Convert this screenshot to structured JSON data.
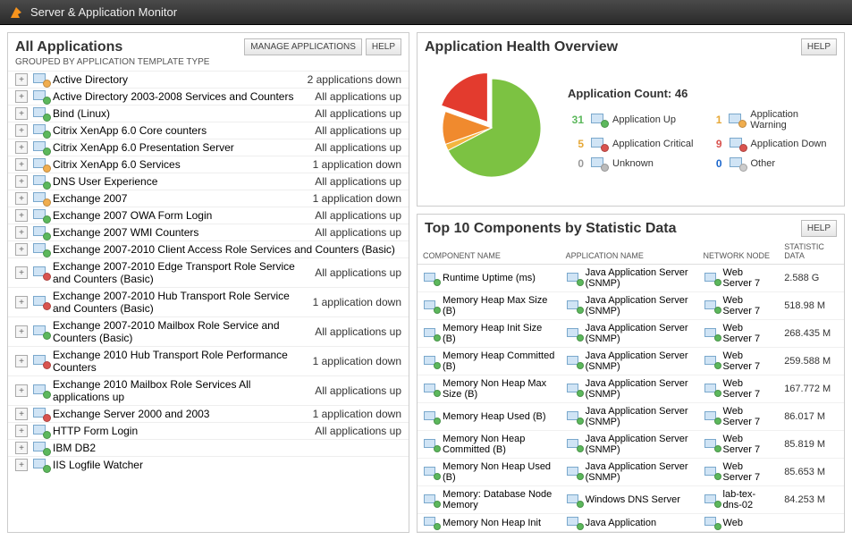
{
  "topbar": {
    "title": "Server & Application Monitor"
  },
  "leftPanel": {
    "title": "All Applications",
    "subtitle": "GROUPED BY APPLICATION TEMPLATE TYPE",
    "manageBtn": "MANAGE APPLICATIONS",
    "helpBtn": "HELP",
    "apps": [
      {
        "name": "Active Directory",
        "status": "2 applications down",
        "state": "warn"
      },
      {
        "name": "Active Directory 2003-2008 Services and Counters",
        "status": "All applications up",
        "state": "up"
      },
      {
        "name": "Bind (Linux)",
        "status": "All applications up",
        "state": "up"
      },
      {
        "name": "Citrix XenApp 6.0 Core counters",
        "status": "All applications up",
        "state": "up"
      },
      {
        "name": "Citrix XenApp 6.0 Presentation Server",
        "status": "All applications up",
        "state": "up"
      },
      {
        "name": "Citrix XenApp 6.0 Services",
        "status": "1 application down",
        "state": "warn"
      },
      {
        "name": "DNS User Experience",
        "status": "All applications up",
        "state": "up"
      },
      {
        "name": "Exchange 2007",
        "status": "1 application down",
        "state": "warn"
      },
      {
        "name": "Exchange 2007 OWA Form Login",
        "status": "All applications up",
        "state": "up"
      },
      {
        "name": "Exchange 2007 WMI Counters",
        "status": "All applications up",
        "state": "up"
      },
      {
        "name": "Exchange 2007-2010 Client Access Role Services and Counters (Basic)",
        "status": "",
        "state": "up"
      },
      {
        "name": "Exchange 2007-2010 Edge Transport Role Service and Counters (Basic)",
        "status": "All applications up",
        "state": "down"
      },
      {
        "name": "Exchange 2007-2010 Hub Transport Role Service and Counters (Basic)",
        "status": "1 application down",
        "state": "down"
      },
      {
        "name": "Exchange 2007-2010 Mailbox Role Service and Counters (Basic)",
        "status": "All applications up",
        "state": "up"
      },
      {
        "name": "Exchange 2010 Hub Transport Role Performance Counters",
        "status": "1 application down",
        "state": "down"
      },
      {
        "name": "Exchange 2010 Mailbox Role Services     All applications up",
        "status": "All applications up",
        "state": "up"
      },
      {
        "name": "Exchange Server 2000 and 2003",
        "status": "1 application down",
        "state": "down"
      },
      {
        "name": "HTTP Form Login",
        "status": "All applications up",
        "state": "up"
      },
      {
        "name": "IBM DB2",
        "status": "",
        "state": "up"
      },
      {
        "name": "IIS Logfile Watcher",
        "status": "",
        "state": "up"
      }
    ]
  },
  "healthPanel": {
    "title": "Application Health Overview",
    "helpBtn": "HELP",
    "countLabel": "Application Count: 46",
    "pie": {
      "slices": [
        {
          "label": "up",
          "value": 31,
          "color": "#7cc242",
          "pulled": false
        },
        {
          "label": "warning",
          "value": 1,
          "color": "#f3b63f",
          "pulled": false
        },
        {
          "label": "critical",
          "value": 5,
          "color": "#f08a2e",
          "pulled": false
        },
        {
          "label": "down",
          "value": 9,
          "color": "#e33b2e",
          "pulled": true
        }
      ],
      "background": "#ffffff"
    },
    "legend": [
      {
        "num": "31",
        "cls": "num-up",
        "dot": "dot-up",
        "label": "Application Up"
      },
      {
        "num": "1",
        "cls": "num-warn",
        "dot": "dot-warn",
        "label": "Application Warning"
      },
      {
        "num": "5",
        "cls": "num-crit",
        "dot": "dot-crit",
        "label": "Application Critical"
      },
      {
        "num": "9",
        "cls": "num-down",
        "dot": "dot-down",
        "label": "Application Down"
      },
      {
        "num": "0",
        "cls": "num-unk",
        "dot": "dot-unk",
        "label": "Unknown"
      },
      {
        "num": "0",
        "cls": "num-other",
        "dot": "dot-other",
        "label": "Other"
      }
    ]
  },
  "topComponents": {
    "title": "Top 10 Components by Statistic Data",
    "helpBtn": "HELP",
    "columns": [
      "COMPONENT NAME",
      "APPLICATION NAME",
      "NETWORK NODE",
      "STATISTIC DATA"
    ],
    "rows": [
      {
        "comp": "Runtime Uptime (ms)",
        "app": "Java Application Server (SNMP)",
        "node": "Web Server 7",
        "stat": "2.588 G"
      },
      {
        "comp": "Memory Heap Max Size (B)",
        "app": "Java Application Server (SNMP)",
        "node": "Web Server 7",
        "stat": "518.98 M"
      },
      {
        "comp": "Memory Heap Init Size (B)",
        "app": "Java Application Server (SNMP)",
        "node": "Web Server 7",
        "stat": "268.435 M"
      },
      {
        "comp": "Memory Heap Committed (B)",
        "app": "Java Application Server (SNMP)",
        "node": "Web Server 7",
        "stat": "259.588 M"
      },
      {
        "comp": "Memory Non Heap Max Size (B)",
        "app": "Java Application Server (SNMP)",
        "node": "Web Server 7",
        "stat": "167.772 M"
      },
      {
        "comp": "Memory Heap Used (B)",
        "app": "Java Application Server (SNMP)",
        "node": "Web Server 7",
        "stat": "86.017 M"
      },
      {
        "comp": "Memory Non Heap Committed (B)",
        "app": "Java Application Server (SNMP)",
        "node": "Web Server 7",
        "stat": "85.819 M"
      },
      {
        "comp": "Memory Non Heap Used (B)",
        "app": "Java Application Server (SNMP)",
        "node": "Web Server 7",
        "stat": "85.653 M"
      },
      {
        "comp": "Memory: Database Node Memory",
        "app": "Windows DNS Server",
        "node": "lab-tex-dns-02",
        "stat": "84.253 M"
      },
      {
        "comp": "Memory Non Heap Init",
        "app": "Java Application",
        "node": "Web",
        "stat": ""
      }
    ]
  }
}
